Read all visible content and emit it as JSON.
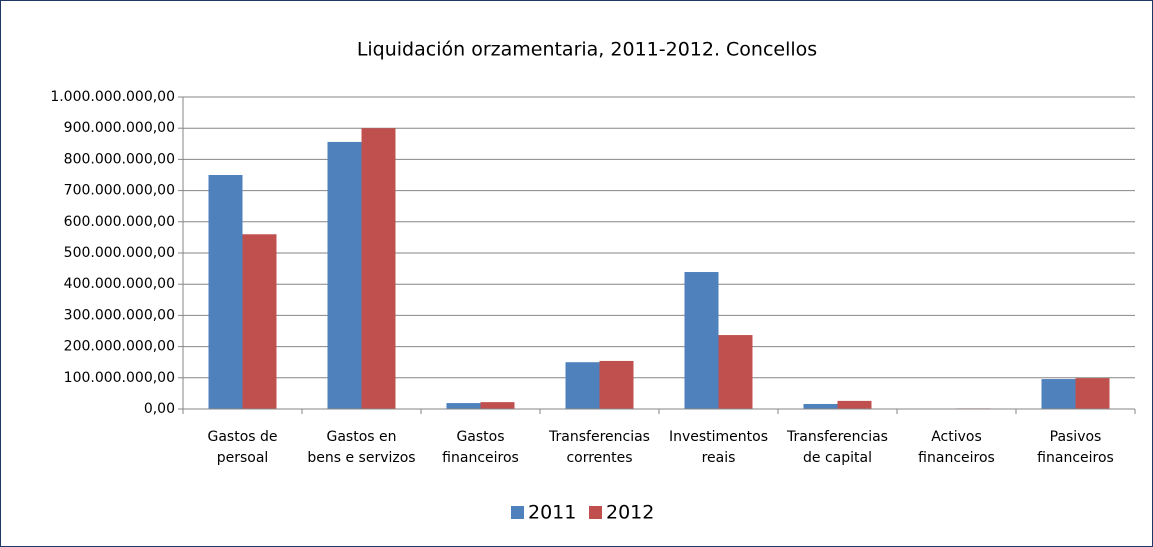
{
  "chart_data": {
    "type": "bar",
    "title": "Liquidación orzamentaria, 2011-2012. Concellos",
    "categories": [
      [
        "Gastos de",
        "persoal"
      ],
      [
        "Gastos en",
        "bens e servizos"
      ],
      [
        "Gastos",
        "financeiros"
      ],
      [
        "Transferencias",
        "correntes"
      ],
      [
        "Investimentos",
        "reais"
      ],
      [
        "Transferencias",
        "de capital"
      ],
      [
        "Activos",
        "financeiros"
      ],
      [
        "Pasivos",
        "financeiros"
      ]
    ],
    "series": [
      {
        "name": "2011",
        "color": "#4f81bd",
        "values": [
          750000000,
          856000000,
          19000000,
          150000000,
          439000000,
          16000000,
          1000000,
          96000000
        ]
      },
      {
        "name": "2012",
        "color": "#c0504d",
        "values": [
          560000000,
          900000000,
          22000000,
          154000000,
          237000000,
          26000000,
          2000000,
          99000000
        ]
      }
    ],
    "ylim": [
      0,
      1000000000
    ],
    "yticks": [
      {
        "value": 0,
        "label": "0,00"
      },
      {
        "value": 100000000,
        "label": "100.000.000,00"
      },
      {
        "value": 200000000,
        "label": "200.000.000,00"
      },
      {
        "value": 300000000,
        "label": "300.000.000,00"
      },
      {
        "value": 400000000,
        "label": "400.000.000,00"
      },
      {
        "value": 500000000,
        "label": "500.000.000,00"
      },
      {
        "value": 600000000,
        "label": "600.000.000,00"
      },
      {
        "value": 700000000,
        "label": "700.000.000,00"
      },
      {
        "value": 800000000,
        "label": "800.000.000,00"
      },
      {
        "value": 900000000,
        "label": "900.000.000,00"
      },
      {
        "value": 1000000000,
        "label": "1.000.000.000,00"
      }
    ],
    "grid": true,
    "legend": "bottom"
  }
}
